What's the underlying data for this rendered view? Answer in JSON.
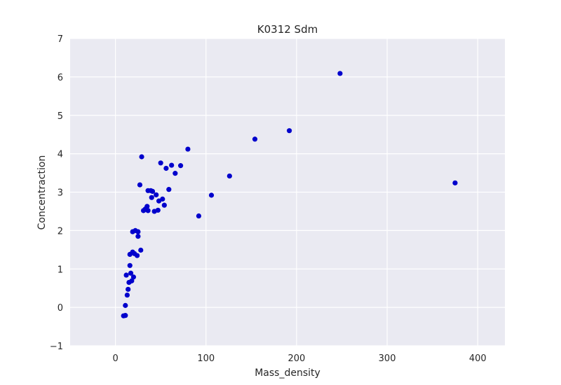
{
  "chart_data": {
    "type": "scatter",
    "title": "K0312 Sdm",
    "xlabel": "Mass_density",
    "ylabel": "Concentraction",
    "xlim": [
      -50,
      430
    ],
    "ylim": [
      -1,
      7
    ],
    "xticks": [
      0,
      100,
      200,
      300,
      400
    ],
    "yticks": [
      -1,
      0,
      1,
      2,
      3,
      4,
      5,
      6,
      7
    ],
    "grid": true,
    "marker_color": "#0000cc",
    "background_color": "#eaeaf2",
    "grid_color": "#ffffff",
    "series": [
      {
        "points": [
          [
            9,
            -0.22
          ],
          [
            11,
            -0.21
          ],
          [
            11,
            0.05
          ],
          [
            13,
            0.32
          ],
          [
            12,
            0.84
          ],
          [
            14,
            0.47
          ],
          [
            15,
            0.65
          ],
          [
            16,
            1.38
          ],
          [
            16,
            1.09
          ],
          [
            17,
            0.89
          ],
          [
            18,
            0.69
          ],
          [
            19,
            1.97
          ],
          [
            19,
            1.44
          ],
          [
            20,
            0.79
          ],
          [
            21,
            1.4
          ],
          [
            22,
            2.0
          ],
          [
            24,
            1.35
          ],
          [
            25,
            1.97
          ],
          [
            25,
            1.85
          ],
          [
            27,
            3.19
          ],
          [
            28,
            1.49
          ],
          [
            29,
            3.92
          ],
          [
            31,
            2.52
          ],
          [
            33,
            2.56
          ],
          [
            35,
            2.63
          ],
          [
            36,
            3.04
          ],
          [
            36,
            2.52
          ],
          [
            39,
            3.04
          ],
          [
            40,
            2.86
          ],
          [
            41,
            3.02
          ],
          [
            43,
            2.5
          ],
          [
            45,
            2.93
          ],
          [
            47,
            2.53
          ],
          [
            48,
            2.77
          ],
          [
            50,
            3.76
          ],
          [
            52,
            2.82
          ],
          [
            54,
            2.66
          ],
          [
            56,
            3.62
          ],
          [
            59,
            3.07
          ],
          [
            62,
            3.7
          ],
          [
            66,
            3.49
          ],
          [
            72,
            3.69
          ],
          [
            80,
            4.12
          ],
          [
            92,
            2.38
          ],
          [
            106,
            2.92
          ],
          [
            126,
            3.42
          ],
          [
            154,
            4.38
          ],
          [
            192,
            4.6
          ],
          [
            248,
            6.09
          ],
          [
            375,
            3.24
          ]
        ]
      }
    ]
  }
}
